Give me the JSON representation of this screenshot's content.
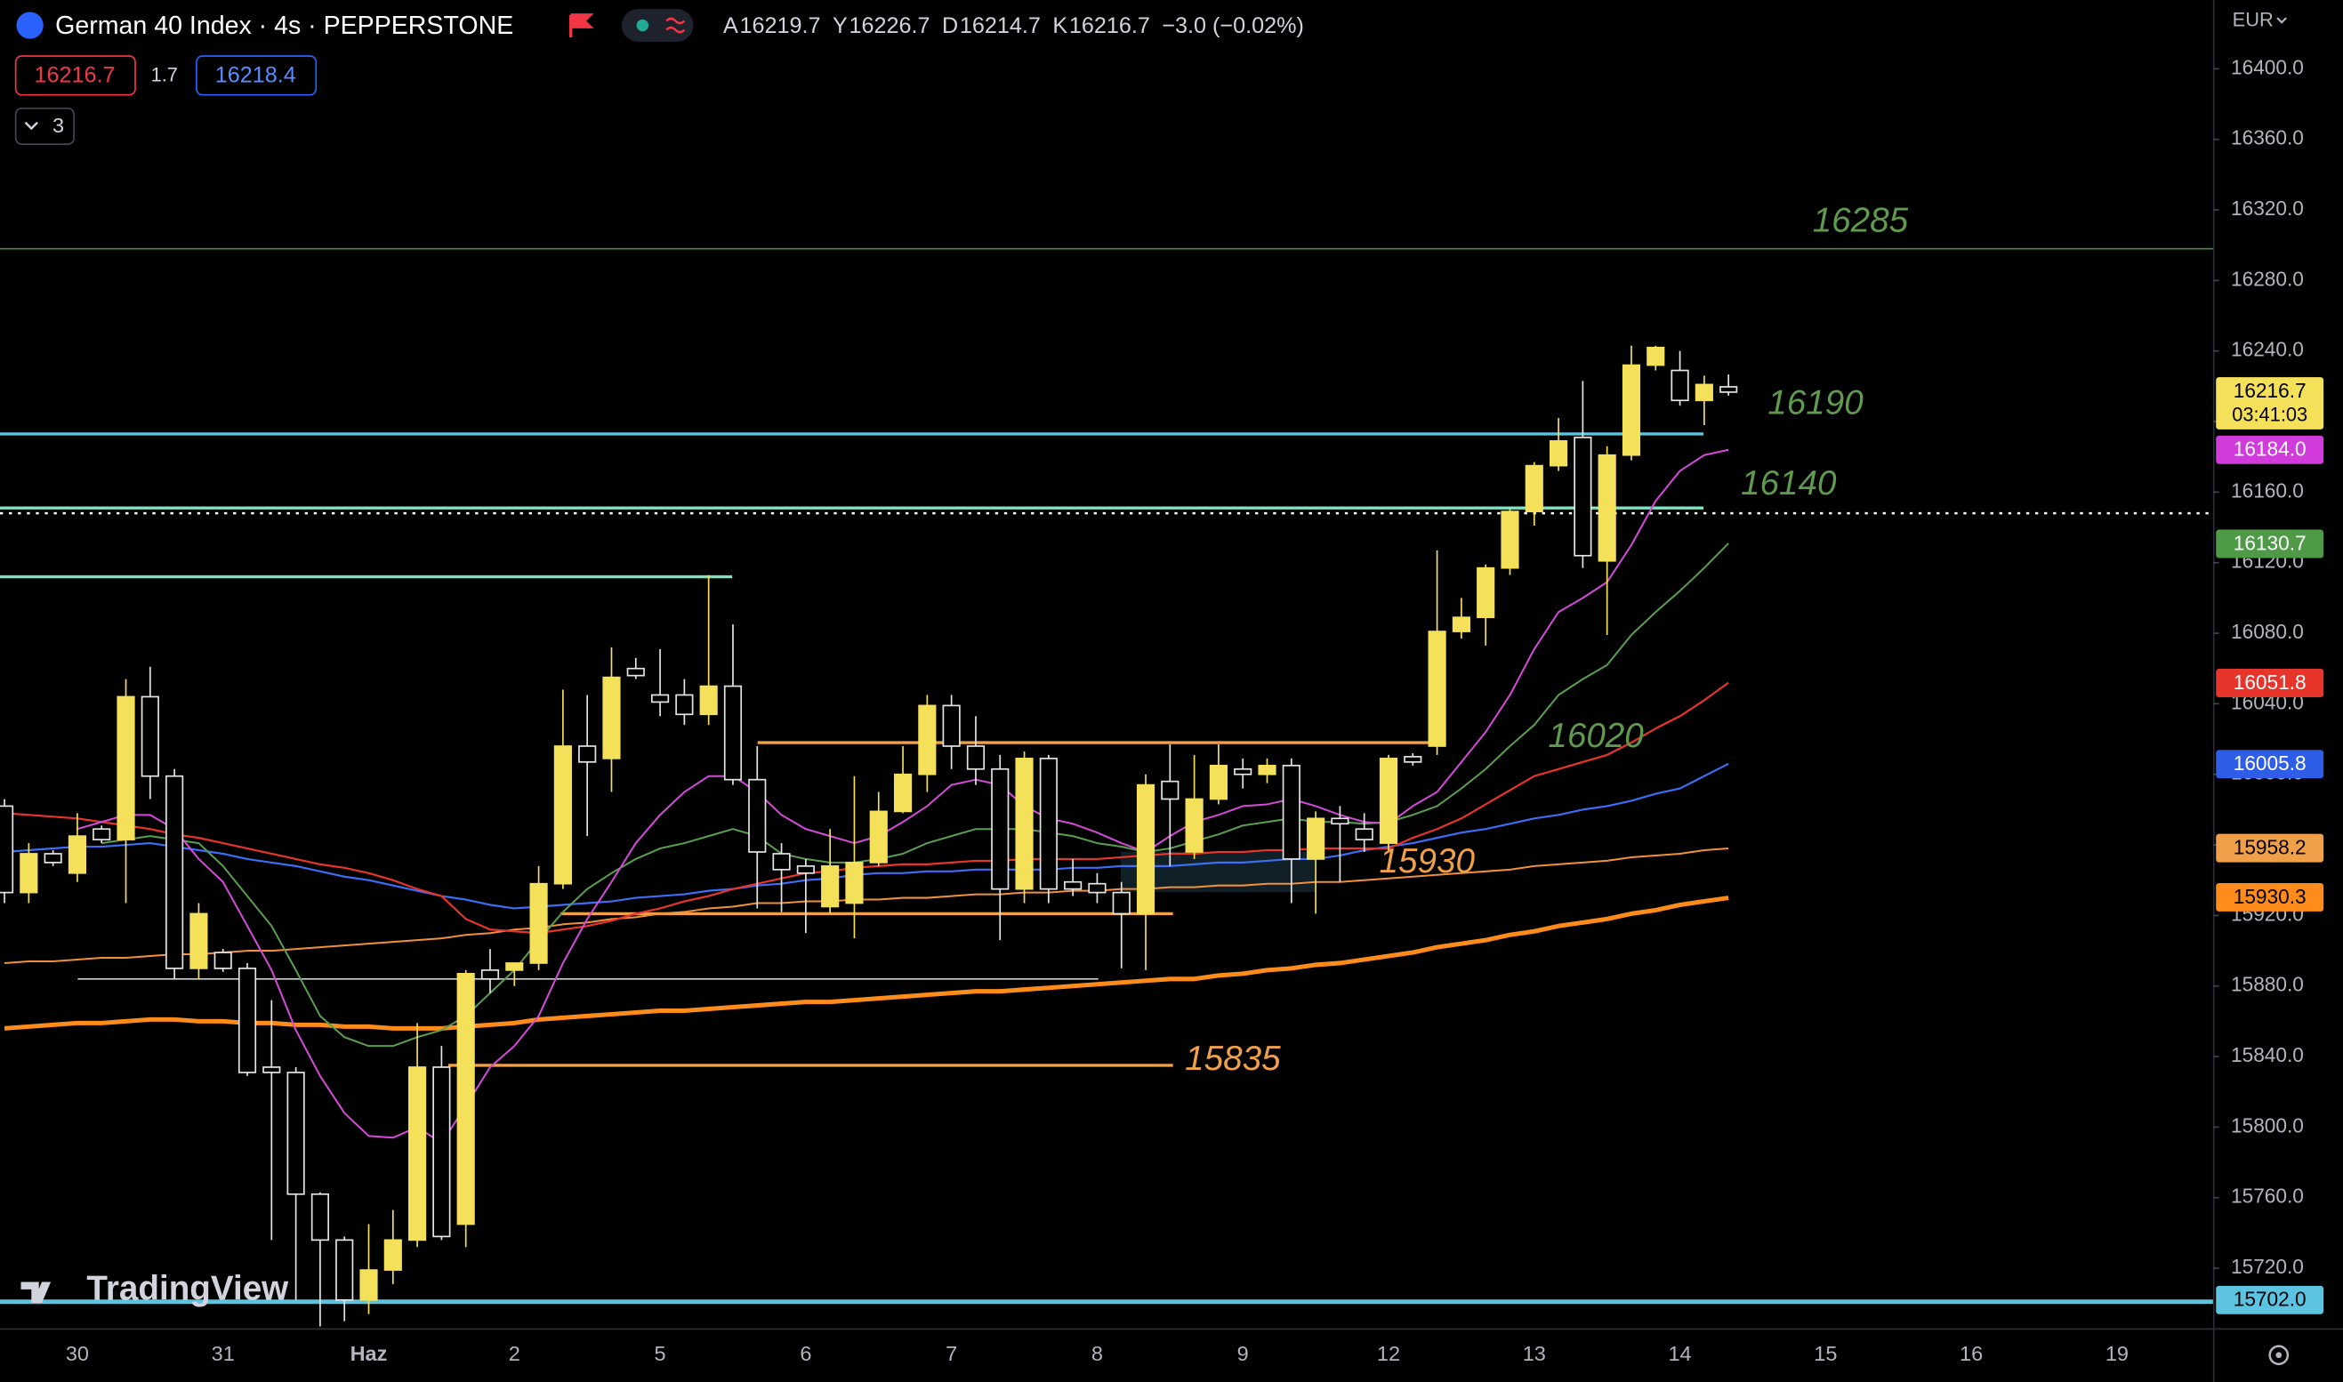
{
  "chart_data": {
    "type": "candlestick",
    "title": "German 40 Index · 4s · PEPPERSTONE",
    "ohlc_header": [
      {
        "key": "A",
        "value": "16219.7"
      },
      {
        "key": "Y",
        "value": "16226.7"
      },
      {
        "key": "D",
        "value": "16214.7"
      },
      {
        "key": "K",
        "value": "16216.7"
      }
    ],
    "change": "−3.0 (−0.02%)",
    "sell_price": "16216.7",
    "spread": "1.7",
    "buy_price": "16218.4",
    "indicator_count": "3",
    "currency": "EUR",
    "watermark": "TradingView",
    "up_color": "#f5e05a",
    "down_color": "#e6e6e6",
    "ylim": [
      15686,
      16439
    ],
    "yticks": [
      {
        "value": 16400,
        "label": "16400.0"
      },
      {
        "value": 16360,
        "label": "16360.0"
      },
      {
        "value": 16320,
        "label": "16320.0"
      },
      {
        "value": 16280,
        "label": "16280.0"
      },
      {
        "value": 16240,
        "label": "16240.0"
      },
      {
        "value": 16200,
        "label": "16200.0"
      },
      {
        "value": 16160,
        "label": "16160.0"
      },
      {
        "value": 16120,
        "label": "16120.0"
      },
      {
        "value": 16080,
        "label": "16080.0"
      },
      {
        "value": 16040,
        "label": "16040.0"
      },
      {
        "value": 16000,
        "label": "16000.0"
      },
      {
        "value": 15960,
        "label": "15960.0"
      },
      {
        "value": 15920,
        "label": "15920.0"
      },
      {
        "value": 15880,
        "label": "15880.0"
      },
      {
        "value": 15840,
        "label": "15840.0"
      },
      {
        "value": 15800,
        "label": "15800.0"
      },
      {
        "value": 15760,
        "label": "15760.0"
      },
      {
        "value": 15720,
        "label": "15720.0"
      }
    ],
    "xticks": [
      "30",
      "31",
      "Haz",
      "2",
      "5",
      "6",
      "7",
      "8",
      "9",
      "12",
      "13",
      "14",
      "15",
      "16",
      "19"
    ],
    "open": [
      15982,
      15933,
      15955,
      15944,
      15969,
      15963,
      16044,
      15999,
      15890,
      15899,
      15890,
      15834,
      15831,
      15762,
      15736,
      15702,
      15719,
      15736,
      15834,
      15745,
      15889,
      15889,
      15893,
      15938,
      16016,
      16009,
      16060,
      16045,
      16045,
      16034,
      16050,
      15997,
      15955,
      15948,
      15925,
      15927,
      15950,
      15979,
      16000,
      16039,
      16016,
      16003,
      15935,
      16009,
      15939,
      15938,
      15933,
      15921,
      15996,
      15956,
      15986,
      16003,
      16000,
      16005,
      15952,
      15975,
      15969,
      15961,
      16010,
      16016,
      16081,
      16089,
      16117,
      16149,
      16175,
      16191,
      16121,
      16181,
      16232,
      16229,
      16212,
      16219.7
    ],
    "high": [
      15986,
      15961,
      15957,
      15978,
      15971,
      16054,
      16061,
      16003,
      15927,
      15901,
      15893,
      15872,
      15834,
      15763,
      15738,
      15745,
      15753,
      15859,
      15846,
      15889,
      15901,
      15893,
      15948,
      16048,
      16045,
      16072,
      16066,
      16071,
      16054,
      16113,
      16085,
      16016,
      15961,
      15952,
      15969,
      15999,
      15990,
      16016,
      16045,
      16045,
      16033,
      16011,
      16013,
      16011,
      15952,
      15944,
      15939,
      16000,
      16017,
      16011,
      16017,
      16009,
      16009,
      16009,
      15979,
      15982,
      15978,
      16011,
      16012,
      16127,
      16100,
      16119,
      16151,
      16177,
      16202,
      16223,
      16186,
      16243,
      16243,
      16240,
      16226,
      16226.7
    ],
    "low": [
      15927,
      15927,
      15948,
      15939,
      15961,
      15927,
      15986,
      15884,
      15884,
      15888,
      15829,
      15736,
      15702,
      15687,
      15690,
      15694,
      15711,
      15732,
      15736,
      15732,
      15876,
      15880,
      15889,
      15935,
      15965,
      15990,
      16054,
      16033,
      16028,
      16028,
      15994,
      15924,
      15922,
      15910,
      15921,
      15907,
      15948,
      15978,
      15990,
      16003,
      15994,
      15906,
      15927,
      15927,
      15931,
      15927,
      15890,
      15889,
      15948,
      15952,
      15983,
      15992,
      15995,
      15927,
      15921,
      15939,
      15956,
      15956,
      16005,
      16011,
      16077,
      16073,
      16113,
      16141,
      16172,
      16117,
      16079,
      16178,
      16229,
      16209,
      16198,
      16214.7
    ],
    "close": [
      15933,
      15955,
      15950,
      15965,
      15963,
      16044,
      15999,
      15890,
      15921,
      15890,
      15831,
      15831,
      15762,
      15736,
      15702,
      15719,
      15736,
      15834,
      15738,
      15887,
      15884,
      15893,
      15938,
      16016,
      16007,
      16055,
      16056,
      16041,
      16034,
      16050,
      15997,
      15956,
      15946,
      15944,
      15948,
      15950,
      15979,
      16000,
      16039,
      16016,
      16003,
      15935,
      16009,
      15935,
      15935,
      15933,
      15921,
      15994,
      15986,
      15986,
      16005,
      16000,
      16005,
      15952,
      15975,
      15972,
      15963,
      16009,
      16007,
      16081,
      16089,
      16117,
      16149,
      16175,
      16189,
      16124,
      16181,
      16232,
      16242,
      16212,
      16221,
      16216.7
    ],
    "lines": [
      {
        "color": "#ff8c1a",
        "width": 3,
        "values": [
          15856,
          15857,
          15858,
          15859,
          15859,
          15860,
          15861,
          15861,
          15860,
          15860,
          15859,
          15859,
          15858,
          15858,
          15857,
          15857,
          15856,
          15856,
          15856,
          15857,
          15858,
          15859,
          15861,
          15862,
          15863,
          15864,
          15865,
          15866,
          15866,
          15867,
          15868,
          15869,
          15870,
          15871,
          15871,
          15872,
          15873,
          15874,
          15875,
          15876,
          15877,
          15877,
          15878,
          15879,
          15880,
          15881,
          15882,
          15883,
          15884,
          15884,
          15886,
          15887,
          15889,
          15890,
          15892,
          15893,
          15895,
          15897,
          15899,
          15902,
          15904,
          15906,
          15909,
          15911,
          15914,
          15916,
          15918,
          15921,
          15923,
          15926,
          15928,
          15930
        ]
      },
      {
        "color": "#f0903a",
        "width": 1.2,
        "values": [
          15893,
          15894,
          15894,
          15895,
          15896,
          15896,
          15897,
          15898,
          15898,
          15899,
          15900,
          15900,
          15901,
          15902,
          15903,
          15904,
          15905,
          15906,
          15907,
          15909,
          15910,
          15912,
          15913,
          15915,
          15916,
          15918,
          15919,
          15921,
          15922,
          15924,
          15925,
          15927,
          15927,
          15928,
          15928,
          15929,
          15929,
          15930,
          15930,
          15931,
          15932,
          15932,
          15933,
          15933,
          15934,
          15934,
          15935,
          15935,
          15936,
          15936,
          15937,
          15937,
          15938,
          15938,
          15939,
          15939,
          15940,
          15941,
          15942,
          15943,
          15944,
          15945,
          15946,
          15948,
          15949,
          15950,
          15951,
          15953,
          15954,
          15955,
          15957,
          15958
        ]
      },
      {
        "color": "#3b6ef5",
        "width": 1.3,
        "values": [
          15956,
          15957,
          15958,
          15959,
          15959,
          15960,
          15961,
          15959,
          15957,
          15955,
          15952,
          15950,
          15948,
          15945,
          15942,
          15940,
          15937,
          15934,
          15931,
          15929,
          15926,
          15924,
          15925,
          15926,
          15927,
          15928,
          15930,
          15931,
          15932,
          15934,
          15935,
          15937,
          15938,
          15940,
          15941,
          15943,
          15944,
          15944,
          15945,
          15945,
          15946,
          15946,
          15946,
          15946,
          15947,
          15947,
          15948,
          15948,
          15948,
          15949,
          15950,
          15950,
          15951,
          15952,
          15952,
          15954,
          15957,
          15959,
          15961,
          15964,
          15967,
          15969,
          15972,
          15975,
          15977,
          15980,
          15982,
          15985,
          15989,
          15992,
          15999,
          16006
        ]
      },
      {
        "color": "#e8352b",
        "width": 1.3,
        "values": [
          15978,
          15977,
          15976,
          15975,
          15973,
          15971,
          15969,
          15966,
          15964,
          15961,
          15958,
          15955,
          15952,
          15949,
          15947,
          15944,
          15940,
          15935,
          15931,
          15918,
          15912,
          15911,
          15910,
          15912,
          15914,
          15917,
          15921,
          15924,
          15928,
          15931,
          15935,
          15938,
          15941,
          15944,
          15945,
          15947,
          15948,
          15949,
          15949,
          15950,
          15951,
          15951,
          15952,
          15952,
          15952,
          15952,
          15953,
          15954,
          15955,
          15955,
          15956,
          15956,
          15957,
          15957,
          15958,
          15958,
          15958,
          15958,
          15964,
          15969,
          15975,
          15983,
          15991,
          15999,
          16003,
          16007,
          16011,
          16018,
          16026,
          16033,
          16042,
          16052
        ]
      },
      {
        "color": "#5a9e4f",
        "width": 1.2,
        "values": [
          null,
          null,
          null,
          null,
          15961,
          15963,
          15965,
          15963,
          15961,
          15948,
          15931,
          15914,
          15889,
          15863,
          15851,
          15846,
          15846,
          15851,
          15855,
          15863,
          15876,
          15889,
          15906,
          15922,
          15935,
          15944,
          15952,
          15958,
          15961,
          15965,
          15969,
          15965,
          15955,
          15952,
          15950,
          15950,
          15952,
          15955,
          15961,
          15965,
          15969,
          15969,
          15969,
          15967,
          15965,
          15961,
          15959,
          15956,
          15958,
          15962,
          15966,
          15971,
          15973,
          15975,
          15973,
          15973,
          15972,
          15973,
          15977,
          15982,
          15992,
          16003,
          16016,
          16028,
          16045,
          16054,
          16062,
          16079,
          16092,
          16104,
          16117,
          16131
        ]
      },
      {
        "color": "#d34bd8",
        "width": 1.2,
        "values": [
          null,
          null,
          null,
          15969,
          15973,
          15977,
          15977,
          15969,
          15952,
          15939,
          15914,
          15889,
          15855,
          15829,
          15808,
          15795,
          15794,
          15800,
          15791,
          15812,
          15834,
          15846,
          15863,
          15893,
          15918,
          15939,
          15961,
          15977,
          15990,
          15999,
          15999,
          15990,
          15977,
          15969,
          15965,
          15961,
          15965,
          15973,
          15982,
          15994,
          15997,
          15994,
          15982,
          15975,
          15972,
          15967,
          15961,
          15956,
          15965,
          15973,
          15977,
          15982,
          15983,
          15986,
          15982,
          15977,
          15973,
          15972,
          15982,
          15990,
          16007,
          16024,
          16045,
          16071,
          16092,
          16100,
          16109,
          16130,
          16155,
          16172,
          16181,
          16184
        ]
      }
    ],
    "levels": [
      {
        "value": 16298,
        "color": "#3f8f55",
        "width": 1
      },
      {
        "value": 16193,
        "color": "#5cc3e0",
        "width": 2
      },
      {
        "value": 16151,
        "color": "#7fe3c4",
        "width": 2
      },
      {
        "value": 16148,
        "color": "#ffffff",
        "width": 1.5,
        "dash": "2 4"
      },
      {
        "value": 16112,
        "color": "#7fe3c4",
        "width": 2
      },
      {
        "value": 16018,
        "color": "#f0a048",
        "width": 2
      },
      {
        "value": 15921,
        "color": "#f0a048",
        "width": 2
      },
      {
        "value": 15884,
        "color": "#cfcfcf",
        "width": 1
      },
      {
        "value": 15835,
        "color": "#f0a048",
        "width": 2
      },
      {
        "value": 15701,
        "color": "#5cc3e0",
        "width": 3
      }
    ],
    "annotations": [
      {
        "text": "16285",
        "color": "#5f9a4e"
      },
      {
        "text": "16190",
        "color": "#5f9a4e"
      },
      {
        "text": "16140",
        "color": "#5f9a4e"
      },
      {
        "text": "16020",
        "color": "#5f9a4e"
      },
      {
        "text": "15930",
        "color": "#f0a048"
      },
      {
        "text": "15835",
        "color": "#f0a048"
      }
    ],
    "price_tags": [
      {
        "value": 16216.7,
        "label": "16216.7",
        "color": "#f5e05a",
        "text_color": "#000000",
        "countdown": "03:41:03"
      },
      {
        "value": 16184.0,
        "label": "16184.0",
        "color": "#d13bdc",
        "text_color": "#ffffff"
      },
      {
        "value": 16130.7,
        "label": "16130.7",
        "color": "#4e9a47",
        "text_color": "#ffffff"
      },
      {
        "value": 16051.8,
        "label": "16051.8",
        "color": "#e8352b",
        "text_color": "#ffffff"
      },
      {
        "value": 16005.8,
        "label": "16005.8",
        "color": "#2e5ee8",
        "text_color": "#ffffff"
      },
      {
        "value": 15958.2,
        "label": "15958.2",
        "color": "#f0a048",
        "text_color": "#000000"
      },
      {
        "value": 15930.3,
        "label": "15930.3",
        "color": "#ff8c1a",
        "text_color": "#000000"
      },
      {
        "value": 15702.0,
        "label": "15702.0",
        "color": "#5cc3e0",
        "text_color": "#000000"
      }
    ]
  }
}
